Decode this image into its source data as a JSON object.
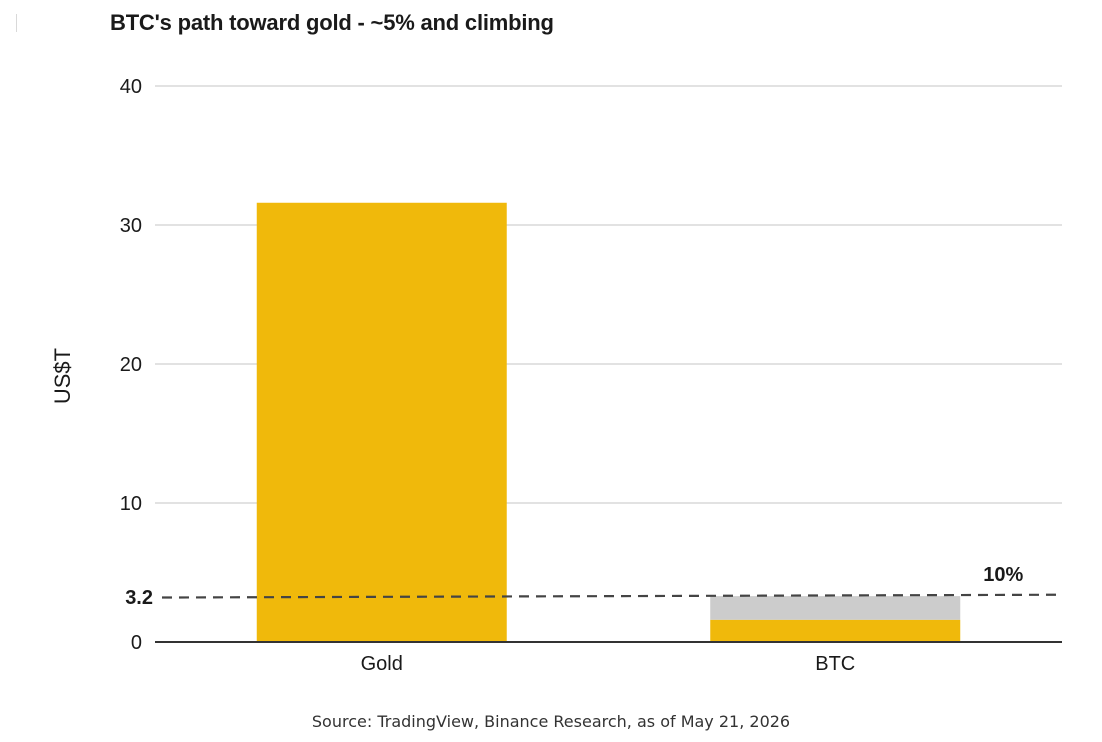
{
  "chart_data": {
    "type": "bar",
    "title": "BTC's path toward gold - ~5% and climbing",
    "ylabel": "US$T",
    "xlabel": "",
    "ylim": [
      0,
      40
    ],
    "yticks": [
      0,
      10,
      20,
      30,
      40
    ],
    "grid": true,
    "categories": [
      "Gold",
      "BTC"
    ],
    "series": [
      {
        "values": [
          31.6,
          1.6
        ]
      },
      {
        "values": [
          0,
          1.7
        ]
      }
    ],
    "reference_line": {
      "label": "3.2",
      "start_value": 3.2,
      "end_value": 3.4,
      "style": "dashed"
    },
    "annotations": [
      {
        "text": "10%",
        "category": "BTC"
      }
    ],
    "source": "Source: TradingView, Binance Research, as of May 21, 2026",
    "colors": {
      "gold": "#F0B90B",
      "grey": "#CCCCCC",
      "grid": "#D9D9D9",
      "axis": "#333333",
      "dashed": "#444444"
    }
  }
}
